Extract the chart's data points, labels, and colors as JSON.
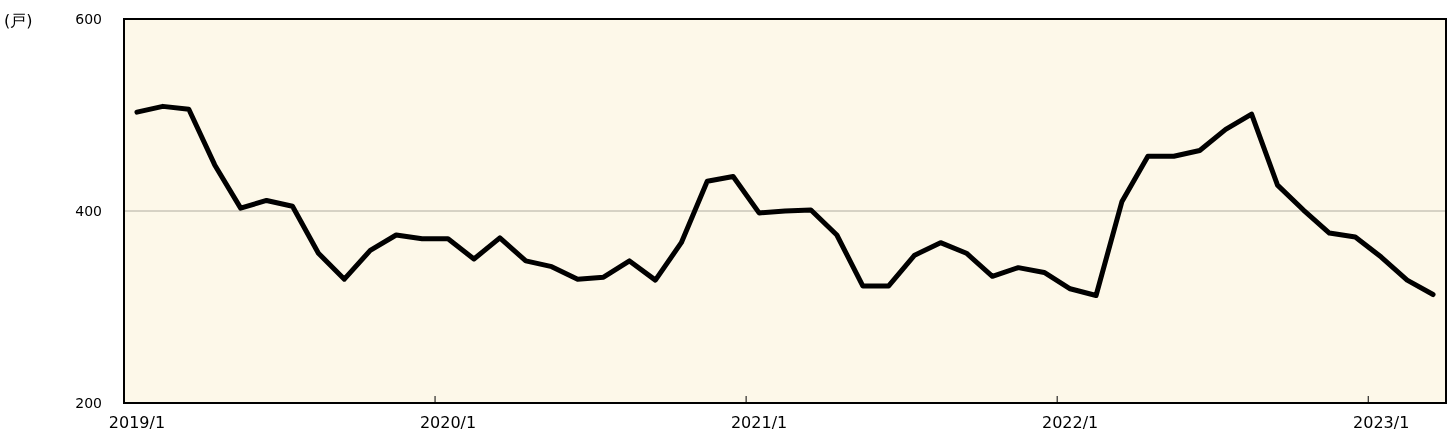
{
  "chart_data": {
    "type": "line",
    "ylabel": "(戸)",
    "categories": [
      "2019/1",
      null,
      null,
      null,
      null,
      null,
      null,
      null,
      null,
      null,
      null,
      null,
      "2020/1",
      null,
      null,
      null,
      null,
      null,
      null,
      null,
      null,
      null,
      null,
      null,
      "2021/1",
      null,
      null,
      null,
      null,
      null,
      null,
      null,
      null,
      null,
      null,
      null,
      "2022/1",
      null,
      null,
      null,
      null,
      null,
      null,
      null,
      null,
      null,
      null,
      null,
      "2023/1",
      null,
      null
    ],
    "series": [
      {
        "color": "#000000",
        "values": [
          503,
          509,
          506,
          448,
          403,
          411,
          405,
          356,
          329,
          359,
          375,
          371,
          371,
          350,
          372,
          348,
          342,
          329,
          331,
          348,
          328,
          367,
          431,
          436,
          398,
          400,
          401,
          375,
          322,
          322,
          354,
          367,
          356,
          332,
          341,
          336,
          319,
          312,
          410,
          457,
          457,
          463,
          485,
          501,
          427,
          401,
          377,
          373,
          352,
          328,
          313
        ]
      }
    ],
    "ylim": [
      200,
      600
    ],
    "yticks": [
      200,
      400,
      600
    ],
    "grid": "y",
    "marker": "none",
    "line_style": "solid"
  }
}
